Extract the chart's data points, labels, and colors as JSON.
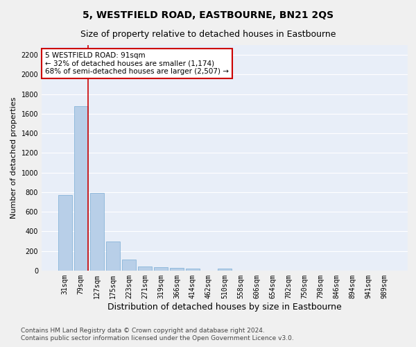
{
  "title": "5, WESTFIELD ROAD, EASTBOURNE, BN21 2QS",
  "subtitle": "Size of property relative to detached houses in Eastbourne",
  "xlabel": "Distribution of detached houses by size in Eastbourne",
  "ylabel": "Number of detached properties",
  "categories": [
    "31sqm",
    "79sqm",
    "127sqm",
    "175sqm",
    "223sqm",
    "271sqm",
    "319sqm",
    "366sqm",
    "414sqm",
    "462sqm",
    "510sqm",
    "558sqm",
    "606sqm",
    "654sqm",
    "702sqm",
    "750sqm",
    "798sqm",
    "846sqm",
    "894sqm",
    "941sqm",
    "989sqm"
  ],
  "values": [
    770,
    1680,
    790,
    300,
    115,
    45,
    32,
    27,
    22,
    0,
    20,
    0,
    0,
    0,
    0,
    0,
    0,
    0,
    0,
    0,
    0
  ],
  "bar_color": "#b8cfe8",
  "bar_edge_color": "#7aadd4",
  "annotation_text_line1": "5 WESTFIELD ROAD: 91sqm",
  "annotation_text_line2": "← 32% of detached houses are smaller (1,174)",
  "annotation_text_line3": "68% of semi-detached houses are larger (2,507) →",
  "red_line_color": "#cc0000",
  "annotation_box_facecolor": "#ffffff",
  "annotation_box_edgecolor": "#cc0000",
  "ylim": [
    0,
    2300
  ],
  "yticks": [
    0,
    200,
    400,
    600,
    800,
    1000,
    1200,
    1400,
    1600,
    1800,
    2000,
    2200
  ],
  "footer_line1": "Contains HM Land Registry data © Crown copyright and database right 2024.",
  "footer_line2": "Contains public sector information licensed under the Open Government Licence v3.0.",
  "background_color": "#e8eef8",
  "grid_color": "#ffffff",
  "title_fontsize": 10,
  "subtitle_fontsize": 9,
  "xlabel_fontsize": 9,
  "ylabel_fontsize": 8,
  "tick_fontsize": 7,
  "annotation_fontsize": 7.5,
  "footer_fontsize": 6.5
}
